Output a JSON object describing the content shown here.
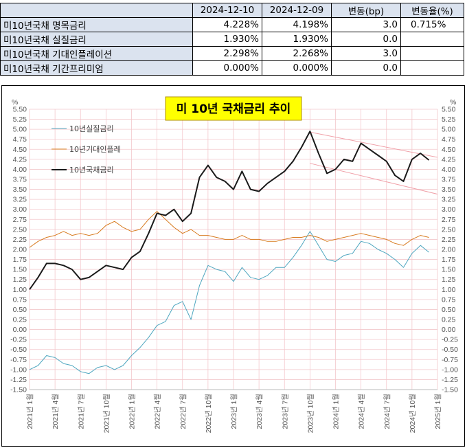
{
  "table": {
    "headers": [
      "",
      "2024-12-10",
      "2024-12-09",
      "변동(bp)",
      "변동율(%)"
    ],
    "rows": [
      {
        "label": "미10년국채 명목금리",
        "v1": "4.228%",
        "v2": "4.198%",
        "bp": "3.0",
        "pct": "0.715%"
      },
      {
        "label": "미10년국채 실질금리",
        "v1": "1.930%",
        "v2": "1.930%",
        "bp": "0.0",
        "pct": ""
      },
      {
        "label": "미10년국채 기대인플레이션",
        "v1": "2.298%",
        "v2": "2.268%",
        "bp": "3.0",
        "pct": ""
      },
      {
        "label": "미10년국채 기간프리미엄",
        "v1": "0.000%",
        "v2": "0.000%",
        "bp": "0.0",
        "pct": ""
      }
    ]
  },
  "chart_data": {
    "type": "line",
    "title": "미 10년 국채금리 추이",
    "y_unit_left": "%",
    "y_unit_right": "%",
    "ylim": [
      -1.5,
      5.5
    ],
    "y_step": 0.25,
    "y_ticks": [
      "-1.50",
      "-1.25",
      "-1.00",
      "-0.75",
      "-0.50",
      "-0.25",
      "0.00",
      "0.25",
      "0.50",
      "0.75",
      "1.00",
      "1.25",
      "1.50",
      "1.75",
      "2.00",
      "2.25",
      "2.50",
      "2.75",
      "3.00",
      "3.25",
      "3.50",
      "3.75",
      "4.00",
      "4.25",
      "4.50",
      "4.75",
      "5.00",
      "5.25",
      "5.50"
    ],
    "x_ticks": [
      "2021년 1월",
      "2021년 4월",
      "2021년 7월",
      "2021년 10월",
      "2022년 1월",
      "2022년 4월",
      "2022년 7월",
      "2022년 10월",
      "2023년 1월",
      "2023년 4월",
      "2023년 7월",
      "2023년 10월",
      "2024년 1월",
      "2024년 4월",
      "2024년 7월",
      "2024년 10월",
      "2025년 1월"
    ],
    "grid": true,
    "legend_position": "top-left",
    "series": [
      {
        "name": "10년실질금리",
        "color": "#4ea6bf",
        "x": [
          "2021-01",
          "2021-02",
          "2021-03",
          "2021-04",
          "2021-05",
          "2021-06",
          "2021-07",
          "2021-08",
          "2021-09",
          "2021-10",
          "2021-11",
          "2021-12",
          "2022-01",
          "2022-02",
          "2022-03",
          "2022-04",
          "2022-05",
          "2022-06",
          "2022-07",
          "2022-08",
          "2022-09",
          "2022-10",
          "2022-11",
          "2022-12",
          "2023-01",
          "2023-02",
          "2023-03",
          "2023-04",
          "2023-05",
          "2023-06",
          "2023-07",
          "2023-08",
          "2023-09",
          "2023-10",
          "2023-11",
          "2023-12",
          "2024-01",
          "2024-02",
          "2024-03",
          "2024-04",
          "2024-05",
          "2024-06",
          "2024-07",
          "2024-08",
          "2024-09",
          "2024-10",
          "2024-11",
          "2024-12"
        ],
        "values": [
          -1.0,
          -0.9,
          -0.65,
          -0.7,
          -0.85,
          -0.9,
          -1.05,
          -1.1,
          -0.95,
          -0.9,
          -1.0,
          -0.9,
          -0.65,
          -0.45,
          -0.2,
          0.1,
          0.2,
          0.6,
          0.7,
          0.25,
          1.1,
          1.6,
          1.5,
          1.45,
          1.2,
          1.55,
          1.3,
          1.25,
          1.35,
          1.55,
          1.55,
          1.8,
          2.1,
          2.45,
          2.1,
          1.75,
          1.7,
          1.85,
          1.9,
          2.2,
          2.15,
          2.0,
          1.9,
          1.75,
          1.55,
          1.9,
          2.1,
          1.93
        ]
      },
      {
        "name": "10년기대인플레",
        "color": "#d77a1e",
        "x": [
          "2021-01",
          "2021-02",
          "2021-03",
          "2021-04",
          "2021-05",
          "2021-06",
          "2021-07",
          "2021-08",
          "2021-09",
          "2021-10",
          "2021-11",
          "2021-12",
          "2022-01",
          "2022-02",
          "2022-03",
          "2022-04",
          "2022-05",
          "2022-06",
          "2022-07",
          "2022-08",
          "2022-09",
          "2022-10",
          "2022-11",
          "2022-12",
          "2023-01",
          "2023-02",
          "2023-03",
          "2023-04",
          "2023-05",
          "2023-06",
          "2023-07",
          "2023-08",
          "2023-09",
          "2023-10",
          "2023-11",
          "2023-12",
          "2024-01",
          "2024-02",
          "2024-03",
          "2024-04",
          "2024-05",
          "2024-06",
          "2024-07",
          "2024-08",
          "2024-09",
          "2024-10",
          "2024-11",
          "2024-12"
        ],
        "values": [
          2.05,
          2.2,
          2.3,
          2.35,
          2.45,
          2.35,
          2.4,
          2.35,
          2.4,
          2.6,
          2.7,
          2.55,
          2.45,
          2.5,
          2.75,
          2.95,
          2.75,
          2.55,
          2.4,
          2.5,
          2.35,
          2.35,
          2.3,
          2.25,
          2.25,
          2.35,
          2.25,
          2.25,
          2.2,
          2.2,
          2.25,
          2.3,
          2.3,
          2.35,
          2.3,
          2.2,
          2.25,
          2.3,
          2.35,
          2.4,
          2.35,
          2.3,
          2.25,
          2.15,
          2.1,
          2.25,
          2.35,
          2.3
        ]
      },
      {
        "name": "10년국채금리",
        "color": "#1a1a1a",
        "x": [
          "2021-01",
          "2021-02",
          "2021-03",
          "2021-04",
          "2021-05",
          "2021-06",
          "2021-07",
          "2021-08",
          "2021-09",
          "2021-10",
          "2021-11",
          "2021-12",
          "2022-01",
          "2022-02",
          "2022-03",
          "2022-04",
          "2022-05",
          "2022-06",
          "2022-07",
          "2022-08",
          "2022-09",
          "2022-10",
          "2022-11",
          "2022-12",
          "2023-01",
          "2023-02",
          "2023-03",
          "2023-04",
          "2023-05",
          "2023-06",
          "2023-07",
          "2023-08",
          "2023-09",
          "2023-10",
          "2023-11",
          "2023-12",
          "2024-01",
          "2024-02",
          "2024-03",
          "2024-04",
          "2024-05",
          "2024-06",
          "2024-07",
          "2024-08",
          "2024-09",
          "2024-10",
          "2024-11",
          "2024-12"
        ],
        "values": [
          1.0,
          1.3,
          1.65,
          1.65,
          1.6,
          1.5,
          1.25,
          1.3,
          1.45,
          1.6,
          1.55,
          1.5,
          1.8,
          1.95,
          2.4,
          2.9,
          2.85,
          3.0,
          2.7,
          2.9,
          3.8,
          4.1,
          3.8,
          3.7,
          3.5,
          3.95,
          3.5,
          3.45,
          3.65,
          3.8,
          3.95,
          4.2,
          4.55,
          4.95,
          4.4,
          3.9,
          4.0,
          4.25,
          4.2,
          4.65,
          4.5,
          4.35,
          4.2,
          3.85,
          3.7,
          4.25,
          4.4,
          4.23
        ]
      }
    ],
    "trend_channel": {
      "color": "#f0a0a8",
      "upper": [
        {
          "x": "2023-10",
          "y": 4.93
        },
        {
          "x": "2025-01",
          "y": 4.3
        }
      ],
      "lower": [
        {
          "x": "2023-10",
          "y": 4.15
        },
        {
          "x": "2025-01",
          "y": 3.38
        }
      ]
    }
  }
}
